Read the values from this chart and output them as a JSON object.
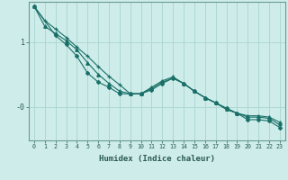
{
  "xlabel": "Humidex (Indice chaleur)",
  "background_color": "#ceecea",
  "grid_color": "#aed8d4",
  "line_color": "#1a7068",
  "xlim": [
    -0.5,
    23.5
  ],
  "ylim": [
    -0.52,
    1.62
  ],
  "series1_x": [
    0,
    1,
    2,
    3,
    4,
    5,
    6,
    7,
    8,
    9,
    10,
    11,
    12,
    13,
    14,
    15,
    16,
    17,
    18,
    19,
    20,
    21,
    22,
    23
  ],
  "series1_y": [
    1.55,
    1.33,
    1.2,
    1.07,
    0.92,
    0.78,
    0.62,
    0.47,
    0.34,
    0.2,
    0.2,
    0.28,
    0.38,
    0.44,
    0.36,
    0.24,
    0.14,
    0.06,
    -0.04,
    -0.1,
    -0.16,
    -0.16,
    -0.18,
    -0.28
  ],
  "series2_x": [
    0,
    1,
    2,
    3,
    4,
    5,
    6,
    7,
    8,
    9,
    10,
    11,
    12,
    13,
    14,
    15,
    16,
    17,
    18,
    19,
    20,
    21,
    22,
    23
  ],
  "series2_y": [
    1.55,
    1.24,
    1.13,
    1.02,
    0.88,
    0.68,
    0.5,
    0.36,
    0.24,
    0.2,
    0.2,
    0.3,
    0.4,
    0.46,
    0.36,
    0.24,
    0.14,
    0.06,
    -0.04,
    -0.1,
    -0.14,
    -0.14,
    -0.16,
    -0.24
  ],
  "series3_x": [
    0,
    2,
    3,
    4,
    5,
    6,
    7,
    8,
    9,
    10,
    11,
    12,
    13,
    14,
    15,
    16,
    17,
    18,
    19,
    20,
    21,
    22,
    23
  ],
  "series3_y": [
    1.55,
    1.1,
    0.96,
    0.78,
    0.52,
    0.38,
    0.3,
    0.2,
    0.2,
    0.2,
    0.26,
    0.36,
    0.44,
    0.36,
    0.24,
    0.14,
    0.06,
    -0.02,
    -0.1,
    -0.2,
    -0.2,
    -0.22,
    -0.32
  ]
}
